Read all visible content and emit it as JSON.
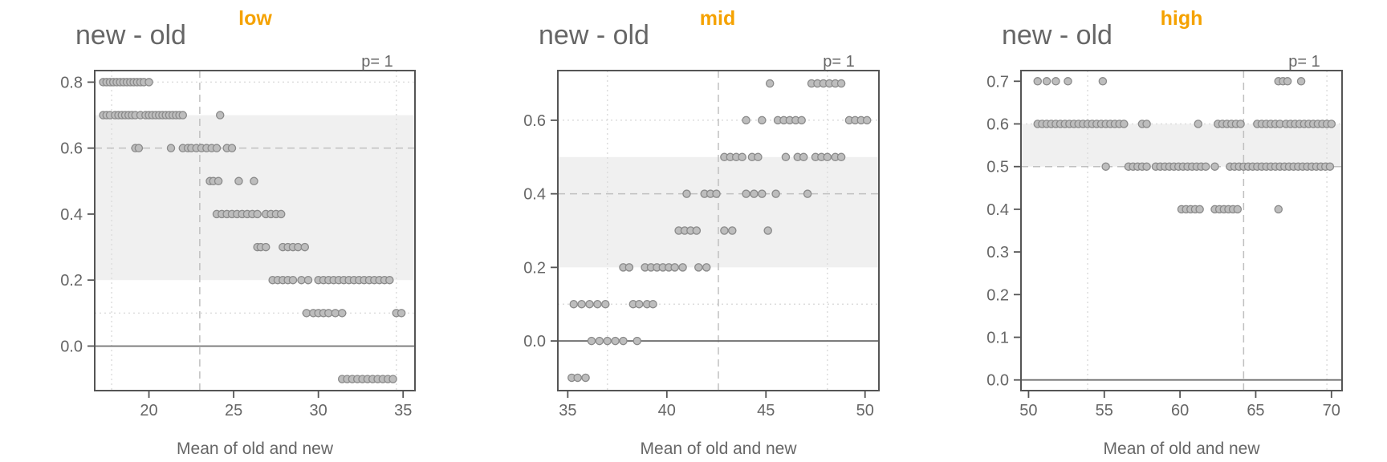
{
  "colors": {
    "title": "#f5a200",
    "axis": "#555555",
    "text": "#666666",
    "grid": "#dddddd",
    "band": "#f0f0f0",
    "point_fill": "#bdbdbd",
    "point_stroke": "#8a8a8a",
    "median_line": "#c0c0c0",
    "zero_line": "#707070"
  },
  "chart_data": [
    {
      "type": "scatter",
      "title": "low",
      "ylabel_title": "new - old",
      "xlabel": "Mean of old and new",
      "pvalue_label": "p=  1",
      "xlim": [
        16.8,
        35.7
      ],
      "ylim": [
        -0.135,
        0.835
      ],
      "xticks": [
        20,
        25,
        30,
        35
      ],
      "yticks": [
        0.0,
        0.2,
        0.4,
        0.6,
        0.8
      ],
      "band": [
        0.2,
        0.7
      ],
      "hline_dashed": 0.6,
      "hline_dotted": [
        0.1,
        0.8
      ],
      "vline_dashed": 23.0,
      "vline_dotted": [
        17.8,
        34.6
      ],
      "zero_line": 0,
      "series": [
        {
          "y": 0.8,
          "x": [
            17.3,
            17.5,
            17.7,
            17.9,
            18.1,
            18.3,
            18.5,
            18.7,
            18.9,
            19.1,
            19.3,
            19.5,
            19.7,
            20.0
          ]
        },
        {
          "y": 0.7,
          "x": [
            17.3,
            17.5,
            17.7,
            18.0,
            18.2,
            18.4,
            18.6,
            18.8,
            19.0,
            19.2,
            19.5,
            19.8,
            20.0,
            20.2,
            20.4,
            20.6,
            20.8,
            21.0,
            21.2,
            21.4,
            21.6,
            21.8,
            22.0,
            24.2
          ]
        },
        {
          "y": 0.6,
          "x": [
            19.2,
            19.4,
            21.3,
            22.0,
            22.3,
            22.5,
            22.8,
            23.1,
            23.4,
            23.7,
            24.0,
            24.6,
            24.9
          ]
        },
        {
          "y": 0.5,
          "x": [
            23.6,
            23.8,
            24.1,
            25.3,
            26.2
          ]
        },
        {
          "y": 0.4,
          "x": [
            24.0,
            24.3,
            24.6,
            24.9,
            25.2,
            25.5,
            25.8,
            26.1,
            26.4,
            26.9,
            27.2,
            27.5,
            27.8
          ]
        },
        {
          "y": 0.3,
          "x": [
            26.4,
            26.6,
            26.9,
            27.9,
            28.2,
            28.5,
            28.8,
            29.2
          ]
        },
        {
          "y": 0.2,
          "x": [
            27.3,
            27.6,
            27.9,
            28.2,
            28.5,
            29.0,
            29.4,
            30.0,
            30.3,
            30.6,
            30.9,
            31.2,
            31.5,
            31.8,
            32.1,
            32.4,
            32.7,
            33.0,
            33.3,
            33.6,
            33.9,
            34.2
          ]
        },
        {
          "y": 0.1,
          "x": [
            29.3,
            29.7,
            30.0,
            30.3,
            30.6,
            31.0,
            31.4,
            34.6,
            34.9
          ]
        },
        {
          "y": -0.1,
          "x": [
            31.4,
            31.7,
            32.0,
            32.3,
            32.6,
            32.9,
            33.2,
            33.5,
            33.8,
            34.1,
            34.4
          ]
        }
      ]
    },
    {
      "type": "scatter",
      "title": "mid",
      "ylabel_title": "new - old",
      "xlabel": "Mean of old and new",
      "pvalue_label": "p=  1",
      "xlim": [
        34.5,
        50.7
      ],
      "ylim": [
        -0.135,
        0.735
      ],
      "xticks": [
        35,
        40,
        45,
        50
      ],
      "yticks": [
        0.0,
        0.2,
        0.4,
        0.6
      ],
      "band": [
        0.2,
        0.5
      ],
      "hline_dashed": 0.4,
      "hline_dotted": [
        0.1,
        0.6
      ],
      "vline_dashed": 42.6,
      "vline_dotted": [
        37.0,
        48.1
      ],
      "zero_line": 0,
      "series": [
        {
          "y": 0.7,
          "x": [
            45.2,
            47.3,
            47.6,
            47.9,
            48.2,
            48.5,
            48.8
          ]
        },
        {
          "y": 0.6,
          "x": [
            44.0,
            44.8,
            45.6,
            45.9,
            46.2,
            46.5,
            46.8,
            49.2,
            49.5,
            49.8,
            50.1
          ]
        },
        {
          "y": 0.5,
          "x": [
            42.9,
            43.2,
            43.5,
            43.8,
            44.3,
            44.6,
            46.0,
            46.6,
            46.9,
            47.5,
            47.8,
            48.1,
            48.5,
            48.8
          ]
        },
        {
          "y": 0.4,
          "x": [
            41.0,
            41.9,
            42.2,
            42.5,
            44.0,
            44.4,
            44.8,
            45.5,
            47.1
          ]
        },
        {
          "y": 0.3,
          "x": [
            40.6,
            40.9,
            41.2,
            41.5,
            42.9,
            43.3,
            45.1
          ]
        },
        {
          "y": 0.2,
          "x": [
            37.8,
            38.1,
            38.9,
            39.2,
            39.5,
            39.8,
            40.1,
            40.4,
            40.8,
            41.6,
            42.0
          ]
        },
        {
          "y": 0.1,
          "x": [
            35.3,
            35.7,
            36.1,
            36.5,
            36.9,
            38.3,
            38.6,
            39.0,
            39.3
          ]
        },
        {
          "y": 0.0,
          "x": [
            36.2,
            36.6,
            37.0,
            37.4,
            37.8,
            38.5
          ]
        },
        {
          "y": -0.1,
          "x": [
            35.2,
            35.5,
            35.9
          ]
        }
      ]
    },
    {
      "type": "scatter",
      "title": "high",
      "ylabel_title": "new - old",
      "xlabel": "Mean of old and new",
      "pvalue_label": "p=  1",
      "xlim": [
        49.5,
        70.7
      ],
      "ylim": [
        -0.025,
        0.725
      ],
      "xticks": [
        50,
        55,
        60,
        65,
        70
      ],
      "yticks": [
        0.0,
        0.1,
        0.2,
        0.3,
        0.4,
        0.5,
        0.6,
        0.7
      ],
      "band": [
        0.5,
        0.6
      ],
      "hline_dashed": 0.5,
      "hline_dotted": [
        0.6
      ],
      "vline_dashed": 64.2,
      "vline_dotted": [
        53.9,
        69.7
      ],
      "zero_line": 0,
      "series": [
        {
          "y": 0.7,
          "x": [
            50.6,
            51.2,
            51.8,
            52.6,
            54.9,
            66.5,
            66.8,
            67.1,
            68.0
          ]
        },
        {
          "y": 0.6,
          "x": [
            50.6,
            50.9,
            51.2,
            51.5,
            51.8,
            52.1,
            52.4,
            52.7,
            53.0,
            53.3,
            53.6,
            53.9,
            54.2,
            54.5,
            54.8,
            55.1,
            55.4,
            55.7,
            56.0,
            56.3,
            57.5,
            57.8,
            61.2,
            62.5,
            62.8,
            63.1,
            63.4,
            63.7,
            64.0,
            65.1,
            65.4,
            65.7,
            66.0,
            66.3,
            66.6,
            67.0,
            67.3,
            67.6,
            67.9,
            68.2,
            68.5,
            68.8,
            69.1,
            69.4,
            69.7,
            70.0
          ]
        },
        {
          "y": 0.5,
          "x": [
            55.1,
            56.6,
            56.9,
            57.2,
            57.5,
            57.8,
            58.4,
            58.7,
            59.0,
            59.3,
            59.6,
            59.9,
            60.2,
            60.5,
            60.8,
            61.1,
            61.4,
            61.7,
            62.3,
            63.3,
            63.6,
            63.9,
            64.2,
            64.5,
            64.8,
            65.1,
            65.4,
            65.7,
            66.0,
            66.3,
            66.6,
            66.9,
            67.2,
            67.5,
            67.8,
            68.1,
            68.4,
            68.7,
            69.0,
            69.3,
            69.6,
            69.9
          ]
        },
        {
          "y": 0.4,
          "x": [
            60.1,
            60.4,
            60.7,
            61.0,
            61.3,
            62.3,
            62.6,
            62.9,
            63.2,
            63.5,
            63.8,
            66.5
          ]
        }
      ]
    }
  ]
}
